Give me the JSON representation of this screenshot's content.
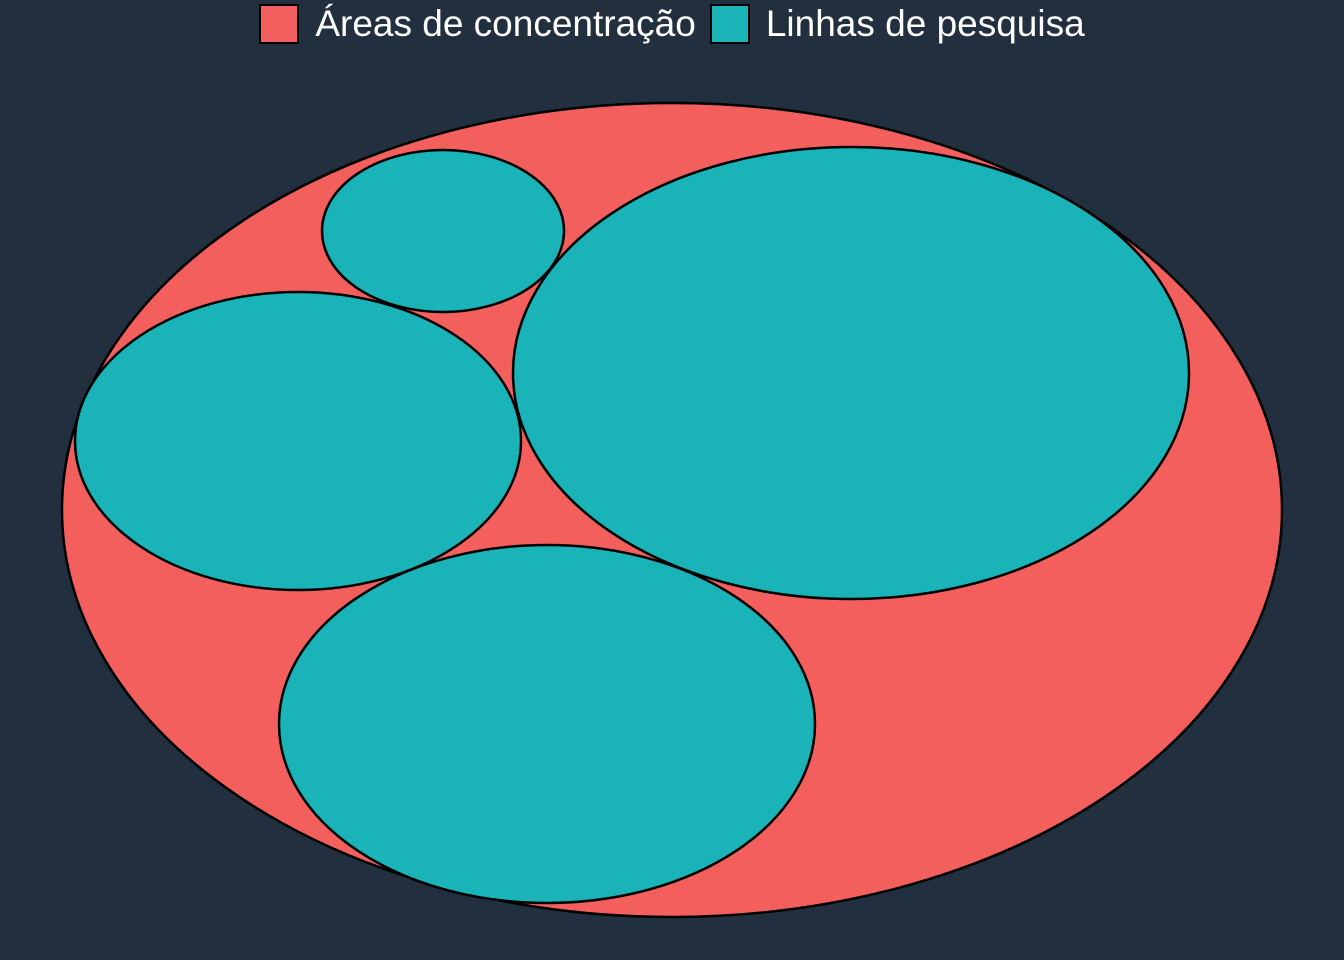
{
  "chart_data": {
    "type": "circle-packing",
    "legend": {
      "position": "top",
      "entries": [
        {
          "label": "Áreas de concentração",
          "color": "#F25F5C"
        },
        {
          "label": "Linhas de pesquisa",
          "color": "#19B3B8"
        }
      ]
    },
    "nodes": [
      {
        "group": "Áreas de concentração",
        "relative_size": 1.0,
        "children": [
          {
            "group": "Linhas de pesquisa",
            "relative_size": 0.41
          },
          {
            "group": "Linhas de pesquisa",
            "relative_size": 0.26
          },
          {
            "group": "Linhas de pesquisa",
            "relative_size": 0.18
          },
          {
            "group": "Linhas de pesquisa",
            "relative_size": 0.04
          }
        ]
      }
    ]
  },
  "colors": {
    "background": "#222F3E",
    "outline": "#000000"
  }
}
